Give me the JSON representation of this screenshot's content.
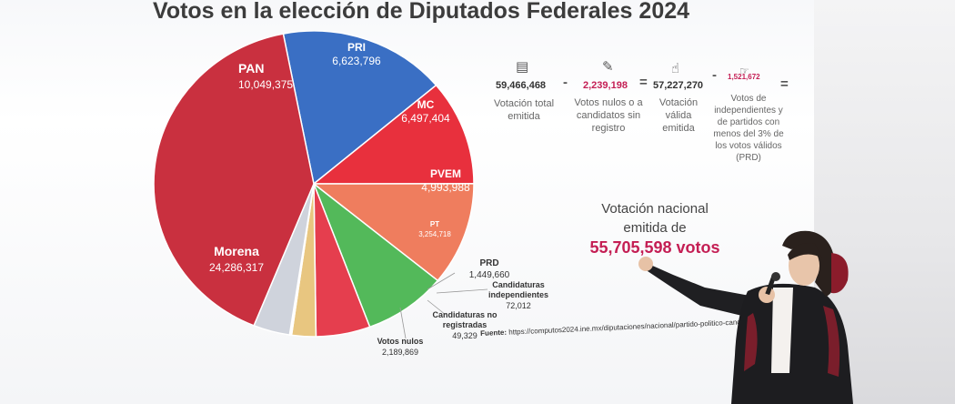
{
  "chart_data": {
    "type": "pie",
    "title": "Votos en la elección de Diputados Federales 2024",
    "slices": [
      {
        "name": "PAN",
        "value": 10049375,
        "value_label": "10,049,375",
        "color": "#3a6fc4"
      },
      {
        "name": "PRI",
        "value": 6623796,
        "value_label": "6,623,796",
        "color": "#e8303d"
      },
      {
        "name": "MC",
        "value": 6497404,
        "value_label": "6,497,404",
        "color": "#ef7d5e"
      },
      {
        "name": "PVEM",
        "value": 4993988,
        "value_label": "4,993,988",
        "color": "#53b95a"
      },
      {
        "name": "PT",
        "value": 3254718,
        "value_label": "3,254,718",
        "color": "#e53e4e"
      },
      {
        "name": "PRD",
        "value": 1449660,
        "value_label": "1,449,660",
        "color": "#e8c680"
      },
      {
        "name": "Candidaturas independientes",
        "value": 72012,
        "value_label": "72,012",
        "color": "#8a8a8a"
      },
      {
        "name": "Candidaturas no registradas",
        "value": 49329,
        "value_label": "49,329",
        "color": "#b0b0b0"
      },
      {
        "name": "Votos nulos",
        "value": 2189869,
        "value_label": "2,189,869",
        "color": "#cfd3dc"
      },
      {
        "name": "Morena",
        "value": 24286317,
        "value_label": "24,286,317",
        "color": "#c9303f"
      }
    ]
  },
  "formula": {
    "total": {
      "value": "59,466,468",
      "label": "Votación total emitida"
    },
    "nulos": {
      "value": "2,239,198",
      "label": "Votos nulos o a candidatos sin registro"
    },
    "valida": {
      "value": "57,227,270",
      "label": "Votación válida emitida"
    },
    "indep": {
      "value": "1,521,672",
      "label": "Votos de independientes y de partidos con menos del 3% de los votos válidos (PRD)"
    },
    "op_minus": "-",
    "op_equals": "=",
    "accent_color": "#c41e54"
  },
  "national": {
    "label": "Votación nacional emitida de",
    "value": "55,705,598 votos"
  },
  "source": {
    "label": "Fuente:",
    "url": "https://computos2024.ine.mx/diputaciones/nacional/partido-politico-candid..."
  }
}
